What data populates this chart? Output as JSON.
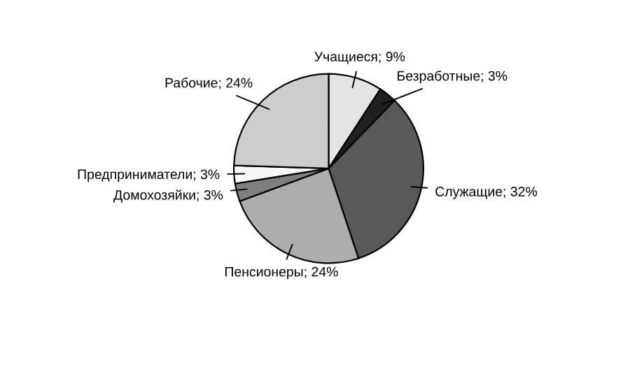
{
  "chart_data": {
    "type": "pie",
    "categories": [
      "Учащиеся; 9%",
      "Безработные; 3%",
      "Служащие; 32%",
      "Пенсионеры; 24%",
      "Домохозяйки; 3%",
      "Предприниматели; 3%",
      "Рабочие; 24%"
    ],
    "values": [
      9,
      3,
      32,
      24,
      3,
      3,
      24
    ],
    "colors": [
      "#e4e4e4",
      "#202020",
      "#595959",
      "#adadad",
      "#7f7f7f",
      "#f8f8f8",
      "#cdcdcd"
    ],
    "legend": false
  }
}
